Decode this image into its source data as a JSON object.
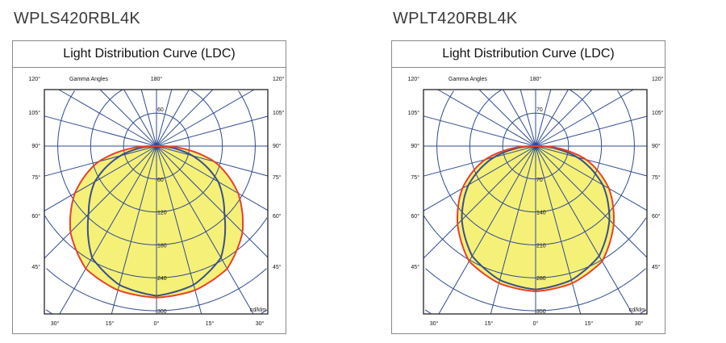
{
  "chart_data": [
    {
      "type": "polar",
      "model": "WPLS420RBL4K",
      "title": "Light Distribution Curve (LDC)",
      "axis_label": "Gamma Angles",
      "unit": "cd/klm",
      "rings": [
        60,
        120,
        180,
        240,
        300
      ],
      "ring_max": 300,
      "angle_labels": {
        "top": "180°",
        "left": [
          "120°",
          "105°",
          "90°",
          "75°",
          "60°",
          "45°"
        ],
        "bottom": [
          "30°",
          "15°",
          "0°",
          "15°",
          "30°"
        ]
      },
      "gamma": [
        0,
        15,
        30,
        45,
        60,
        75,
        90
      ],
      "series": [
        {
          "color": "#e8412c",
          "values": [
            276,
            272,
            258,
            222,
            172,
            110,
            15
          ]
        },
        {
          "color": "#3a4f8c",
          "values": [
            273,
            262,
            235,
            175,
            130,
            68,
            0
          ]
        }
      ],
      "fill": "#f5f078",
      "grid_color": "#2f4a8f"
    },
    {
      "type": "polar",
      "model": "WPLT420RBL4K",
      "title": "Light Distribution Curve (LDC)",
      "axis_label": "Gamma Angles",
      "unit": "cd/klm",
      "rings": [
        70,
        140,
        210,
        280,
        350
      ],
      "ring_max": 350,
      "angle_labels": {
        "top": "180°",
        "left": [
          "120°",
          "105°",
          "90°",
          "75°",
          "60°",
          "45°"
        ],
        "bottom": [
          "30°",
          "15°",
          "0°",
          "15°",
          "30°"
        ]
      },
      "gamma": [
        0,
        15,
        30,
        45,
        60,
        75,
        90
      ],
      "series": [
        {
          "color": "#e8412c",
          "values": [
            309,
            302,
            283,
            235,
            180,
            112,
            15
          ]
        },
        {
          "color": "#3a4f8c",
          "values": [
            305,
            295,
            270,
            222,
            165,
            92,
            0
          ]
        }
      ],
      "fill": "#f5f078",
      "grid_color": "#2f4a8f"
    }
  ]
}
